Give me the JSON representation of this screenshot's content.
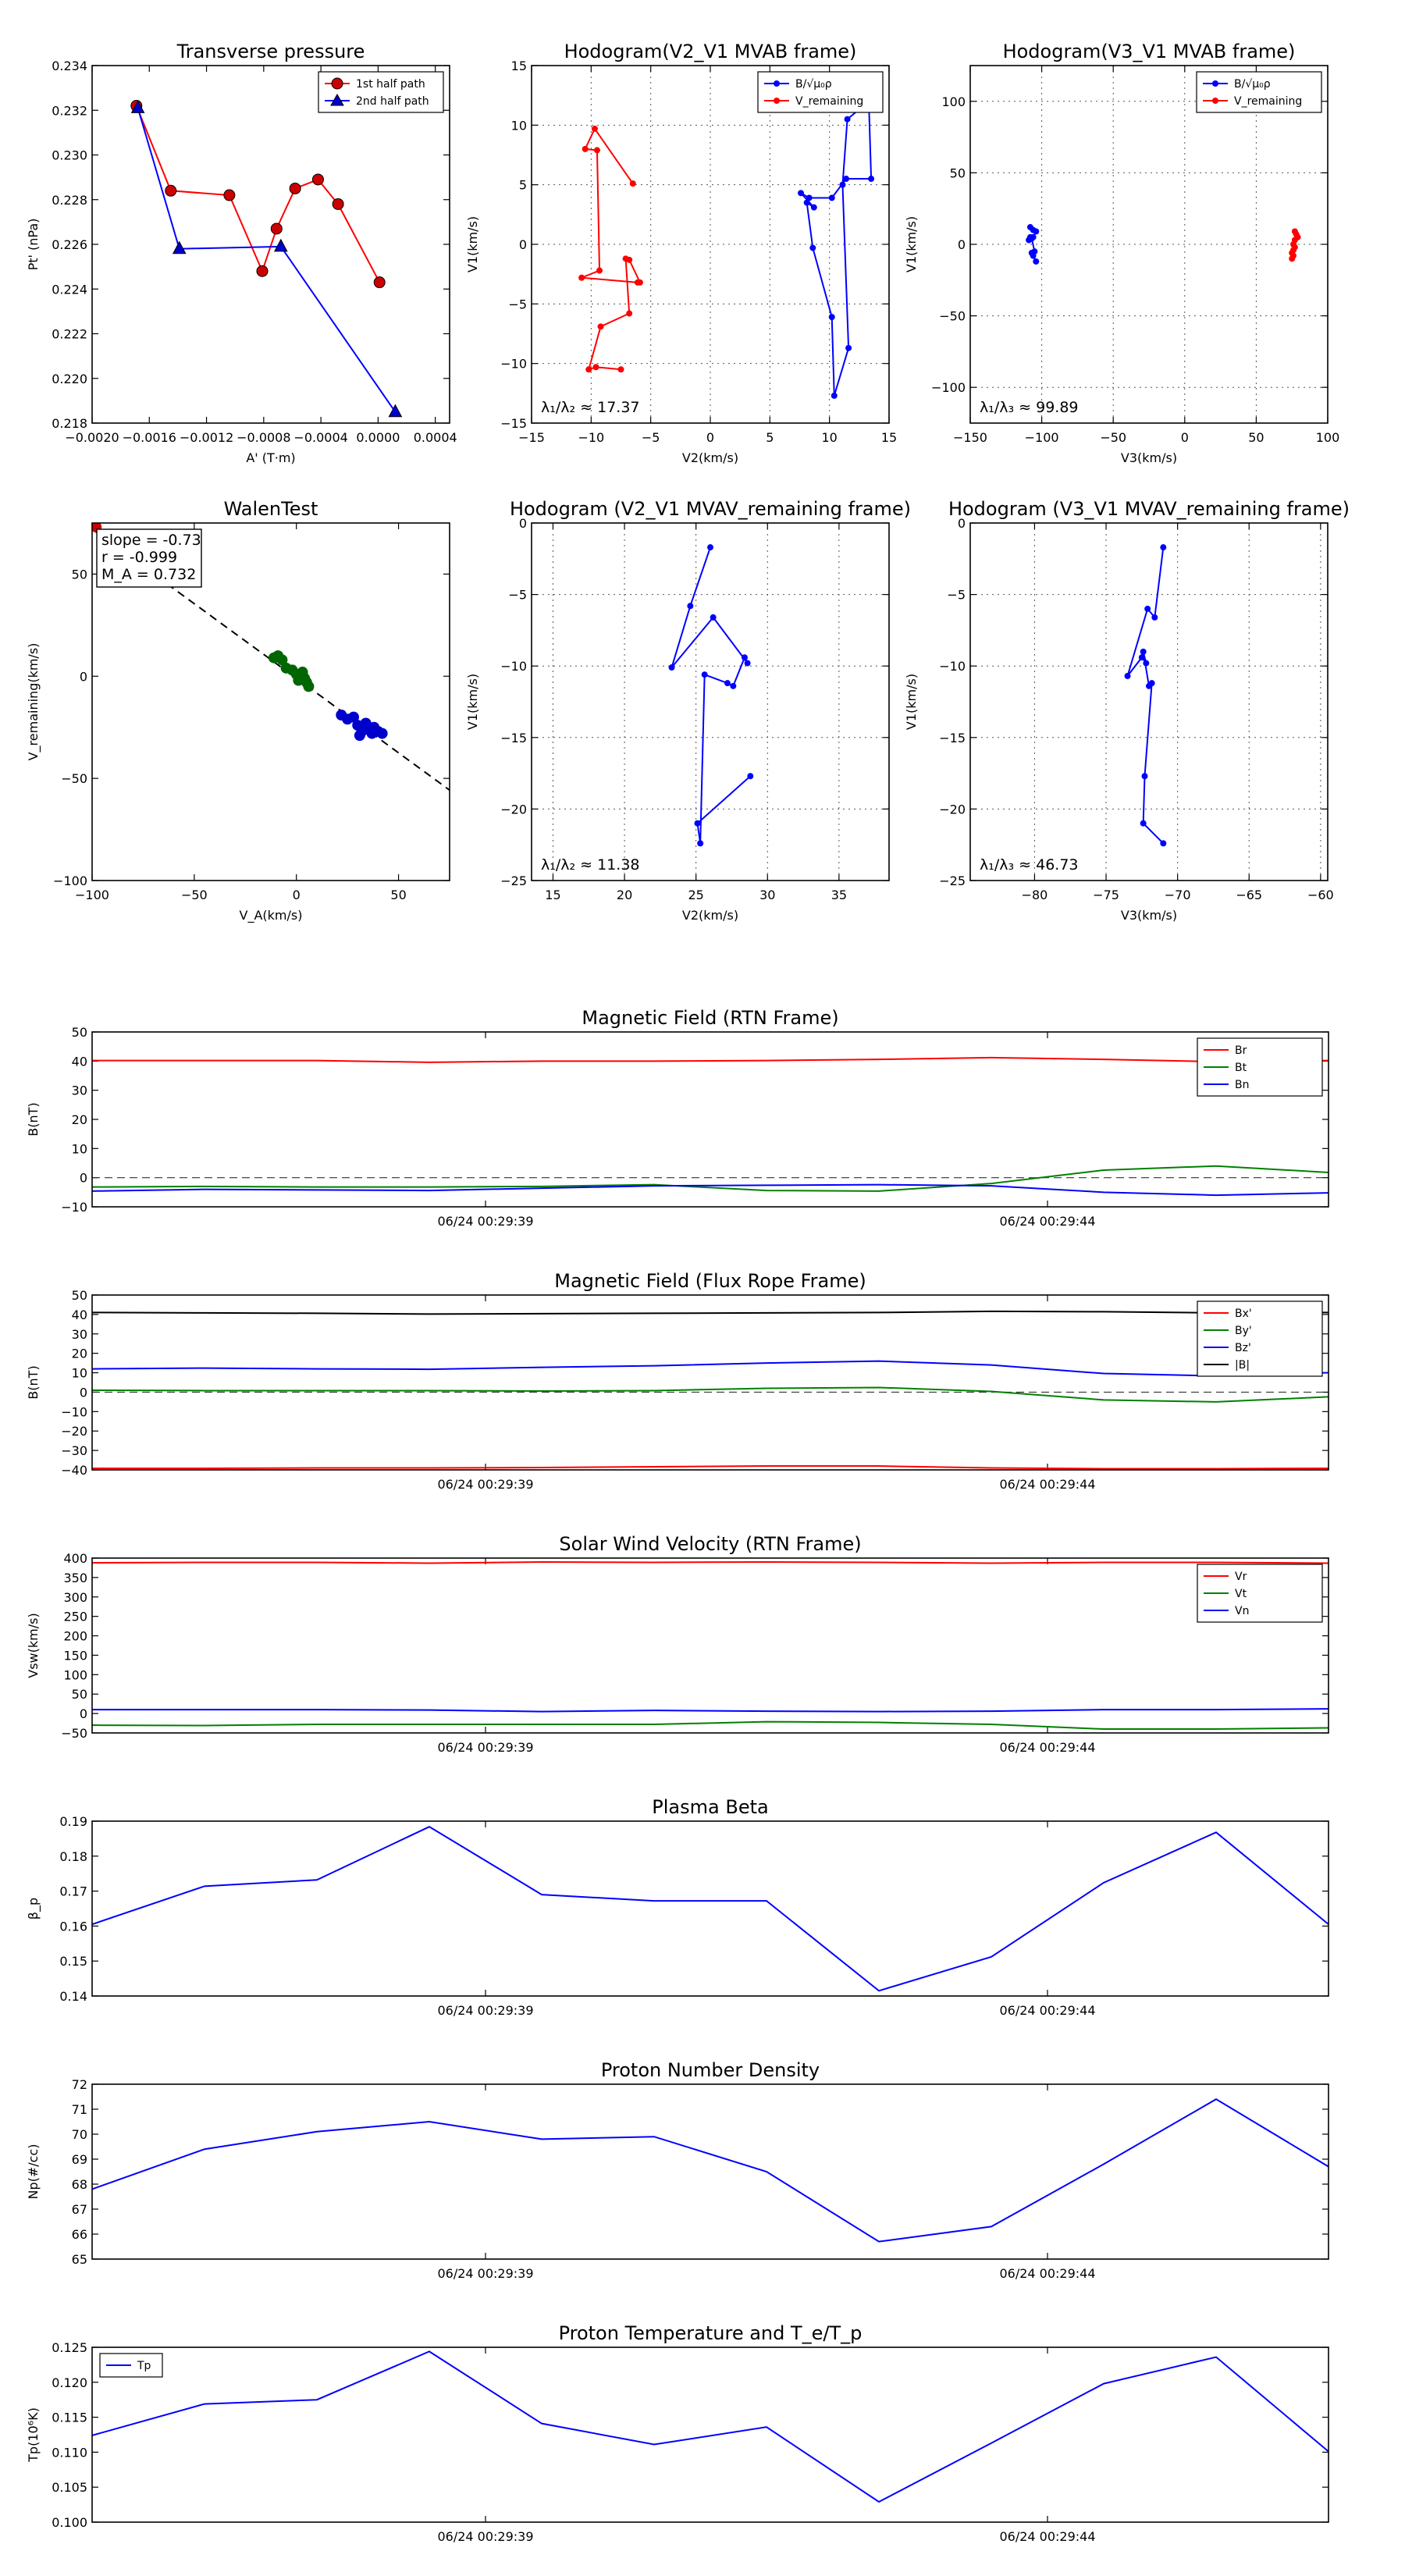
{
  "chart_data": [
    {
      "id": "transverse",
      "type": "line",
      "title": "Transverse pressure",
      "xlabel": "A' (T·m)",
      "ylabel": "Pt' (nPa)",
      "xlim": [
        -0.002,
        0.0005
      ],
      "ylim": [
        0.218,
        0.234
      ],
      "xticks": [
        -0.002,
        -0.0016,
        -0.0012,
        -0.0008,
        -0.0004,
        0.0,
        0.0004
      ],
      "xtick_labels": [
        "−0.0020",
        "−0.0016",
        "−0.0012",
        "−0.0008",
        "−0.0004",
        "0.0000",
        "0.0004"
      ],
      "yticks": [
        0.218,
        0.22,
        0.222,
        0.224,
        0.226,
        0.228,
        0.23,
        0.232,
        0.234
      ],
      "ytick_labels": [
        "0.218",
        "0.220",
        "0.222",
        "0.224",
        "0.226",
        "0.228",
        "0.230",
        "0.232",
        "0.234"
      ],
      "grid": false,
      "legend": "top-right",
      "series": [
        {
          "name": "1st half path",
          "color": "#ff0000",
          "fill": "#cc0000",
          "marker": "circle",
          "x": [
            -0.00169,
            -0.00145,
            -0.00104,
            -0.00081,
            -0.00071,
            -0.00058,
            -0.00042,
            -0.00028,
            1e-05
          ],
          "y": [
            0.2322,
            0.2284,
            0.2282,
            0.2248,
            0.2267,
            0.2285,
            0.2289,
            0.2278,
            0.2243
          ]
        },
        {
          "name": "2nd half path",
          "color": "#0000ff",
          "fill": "#0000cc",
          "marker": "triangle",
          "x": [
            -0.00168,
            -0.00139,
            -0.00068,
            0.00012
          ],
          "y": [
            0.2321,
            0.2258,
            0.2259,
            0.2185
          ]
        }
      ]
    },
    {
      "id": "hodo_v2v1_mvab",
      "type": "line",
      "title": "Hodogram(V2_V1 MVAB frame)",
      "xlabel": "V2(km/s)",
      "ylabel": "V1(km/s)",
      "xlim": [
        -15,
        15
      ],
      "ylim": [
        -15,
        15
      ],
      "xticks": [
        -15,
        -10,
        -5,
        0,
        5,
        10,
        15
      ],
      "xtick_labels": [
        "−15",
        "−10",
        "−5",
        "0",
        "5",
        "10",
        "15"
      ],
      "yticks": [
        -15,
        -10,
        -5,
        0,
        5,
        10,
        15
      ],
      "ytick_labels": [
        "−15",
        "−10",
        "−5",
        "0",
        "5",
        "10",
        "15"
      ],
      "grid": true,
      "legend": "top-right",
      "legend_labels": [
        "B/√μ₀ρ",
        "V_remaining"
      ],
      "annotation": "λ₁/λ₂ ≈ 17.37",
      "series": [
        {
          "name": "B/√μ₀ρ",
          "color": "#0000ff",
          "marker": "dot",
          "x": [
            13.3,
            11.5,
            11.1,
            11.6,
            10.4,
            10.2,
            8.6,
            8.1,
            8.7,
            7.6,
            8.3,
            10.2,
            11.4,
            13.5,
            13.3
          ],
          "y": [
            12.0,
            10.5,
            5.0,
            -8.7,
            -12.7,
            -6.1,
            -0.3,
            3.5,
            3.1,
            4.3,
            3.9,
            3.9,
            5.5,
            5.5,
            12.0
          ]
        },
        {
          "name": "V_remaining",
          "color": "#ff0000",
          "marker": "dot",
          "x": [
            -6.5,
            -9.7,
            -10.5,
            -9.5,
            -9.3,
            -10.8,
            -6.1,
            -5.9,
            -6.8,
            -7.1,
            -6.8,
            -9.2,
            -10.2,
            -9.6,
            -7.5
          ],
          "y": [
            5.1,
            9.7,
            8.0,
            7.9,
            -2.2,
            -2.8,
            -3.2,
            -3.2,
            -1.3,
            -1.2,
            -5.8,
            -6.9,
            -10.5,
            -10.3,
            -10.5
          ]
        }
      ]
    },
    {
      "id": "hodo_v3v1_mvab",
      "type": "line",
      "title": "Hodogram(V3_V1 MVAB frame)",
      "xlabel": "V3(km/s)",
      "ylabel": "V1(km/s)",
      "xlim": [
        -150,
        100
      ],
      "ylim": [
        -125,
        125
      ],
      "xticks": [
        -150,
        -100,
        -50,
        0,
        50,
        100
      ],
      "xtick_labels": [
        "−150",
        "−100",
        "−50",
        "0",
        "50",
        "100"
      ],
      "yticks": [
        -100,
        -50,
        0,
        50,
        100
      ],
      "ytick_labels": [
        "−100",
        "−50",
        "0",
        "50",
        "100"
      ],
      "grid": true,
      "legend": "top-right",
      "legend_labels": [
        "B/√μ₀ρ",
        "V_remaining"
      ],
      "annotation": "λ₁/λ₃ ≈ 99.89",
      "series": [
        {
          "name": "B/√μ₀ρ",
          "color": "#0000ff",
          "marker": "dot",
          "x": [
            -108,
            -106,
            -104,
            -106,
            -109,
            -108,
            -107,
            -105,
            -106,
            -107,
            -104
          ],
          "y": [
            12,
            10,
            9,
            5,
            3,
            5,
            4,
            -5,
            -8,
            -6,
            -12
          ]
        },
        {
          "name": "V_remaining",
          "color": "#ff0000",
          "marker": "dot",
          "x": [
            77,
            78,
            79,
            77,
            76,
            77,
            76,
            75,
            76,
            75
          ],
          "y": [
            9,
            7,
            5,
            3,
            0,
            -2,
            -4,
            -6,
            -8,
            -10
          ]
        }
      ]
    },
    {
      "id": "walen",
      "type": "scatter",
      "title": "WalenTest",
      "xlabel": "V_A(km/s)",
      "ylabel": "V_remaining(km/s)",
      "xlim": [
        -100,
        75
      ],
      "ylim": [
        -100,
        75
      ],
      "xticks": [
        -100,
        -50,
        0,
        50
      ],
      "xtick_labels": [
        "−100",
        "−50",
        "0",
        "50"
      ],
      "yticks": [
        -100,
        -50,
        0,
        50
      ],
      "ytick_labels": [
        "−100",
        "−50",
        "0",
        "50"
      ],
      "grid": false,
      "fit_slope": -0.73,
      "fit_intercept": -1.0,
      "stats_lines": [
        "slope = -0.73",
        "r = -0.999",
        "M_A = 0.732"
      ],
      "series": [
        {
          "name": "start",
          "color": "#cc0000",
          "x": [
            -100,
            -98
          ],
          "y": [
            75,
            73
          ]
        },
        {
          "name": "middle",
          "color": "#006600",
          "x": [
            -11,
            -9,
            -7,
            -5,
            -2,
            0,
            2,
            3,
            4,
            5,
            6,
            1,
            3
          ],
          "y": [
            9,
            10,
            8,
            4,
            3,
            1,
            0,
            2,
            -1,
            -3,
            -5,
            -2,
            1
          ]
        },
        {
          "name": "end",
          "color": "#0000cc",
          "x": [
            22,
            25,
            28,
            30,
            32,
            33,
            35,
            37,
            38,
            40,
            42,
            31,
            34
          ],
          "y": [
            -19,
            -21,
            -20,
            -24,
            -27,
            -25,
            -26,
            -28,
            -25,
            -27,
            -28,
            -29,
            -23
          ]
        }
      ]
    },
    {
      "id": "hodo_v2v1_mvav",
      "type": "line",
      "title": "Hodogram (V2_V1 MVAV_remaining frame)",
      "xlabel": "V2(km/s)",
      "ylabel": "V1(km/s)",
      "xlim": [
        13.5,
        38.5
      ],
      "ylim": [
        -25,
        0
      ],
      "xticks": [
        15,
        20,
        25,
        30,
        35
      ],
      "xtick_labels": [
        "15",
        "20",
        "25",
        "30",
        "35"
      ],
      "yticks": [
        -25,
        -20,
        -15,
        -10,
        -5,
        0
      ],
      "ytick_labels": [
        "−25",
        "−20",
        "−15",
        "−10",
        "−5",
        "0"
      ],
      "grid": true,
      "annotation": "λ₁/λ₂ ≈ 11.38",
      "series": [
        {
          "name": "V",
          "color": "#0000ff",
          "marker": "dot",
          "x": [
            26.0,
            24.6,
            23.3,
            26.2,
            28.6,
            28.4,
            27.6,
            27.2,
            25.6,
            25.3,
            25.1,
            28.8
          ],
          "y": [
            -1.7,
            -5.8,
            -10.1,
            -6.6,
            -9.8,
            -9.4,
            -11.4,
            -11.2,
            -10.6,
            -22.4,
            -21.0,
            -17.7
          ]
        }
      ]
    },
    {
      "id": "hodo_v3v1_mvav",
      "type": "line",
      "title": "Hodogram (V3_V1 MVAV_remaining frame)",
      "xlabel": "V3(km/s)",
      "ylabel": "V1(km/s)",
      "xlim": [
        -84.5,
        -59.5
      ],
      "ylim": [
        -25,
        0
      ],
      "xticks": [
        -80,
        -75,
        -70,
        -65,
        -60
      ],
      "xtick_labels": [
        "−80",
        "−75",
        "−70",
        "−65",
        "−60"
      ],
      "yticks": [
        -25,
        -20,
        -15,
        -10,
        -5,
        0
      ],
      "ytick_labels": [
        "−25",
        "−20",
        "−15",
        "−10",
        "−5",
        "0"
      ],
      "grid": true,
      "annotation": "λ₁/λ₃ ≈ 46.73",
      "series": [
        {
          "name": "V",
          "color": "#0000ff",
          "marker": "dot",
          "x": [
            -71.0,
            -71.6,
            -72.1,
            -73.5,
            -72.5,
            -72.2,
            -72.4,
            -72.0,
            -71.8,
            -72.3,
            -72.4,
            -71.0
          ],
          "y": [
            -1.7,
            -6.6,
            -6.0,
            -10.7,
            -9.4,
            -9.8,
            -9.0,
            -11.4,
            -11.2,
            -17.7,
            -21.0,
            -22.4
          ]
        }
      ]
    },
    {
      "id": "mag_rtn",
      "type": "line",
      "title": "Magnetic Field (RTN Frame)",
      "ylabel": "B(nT)",
      "ylim": [
        -10,
        50
      ],
      "yticks": [
        -10,
        0,
        10,
        20,
        30,
        40,
        50
      ],
      "ytick_labels": [
        "−10",
        "0",
        "10",
        "20",
        "30",
        "40",
        "50"
      ],
      "xtick_idx": [
        3.5,
        8.5
      ],
      "xtick_labels": [
        "06/24 00:29:39",
        "06/24 00:29:44"
      ],
      "zero_line": true,
      "legend": "top-right",
      "series": [
        {
          "name": "Br",
          "color": "#ff0000",
          "values": [
            40.2,
            40.2,
            40.2,
            39.6,
            40.0,
            40.0,
            40.2,
            40.6,
            41.2,
            40.6,
            39.8,
            40.2
          ]
        },
        {
          "name": "Bt",
          "color": "#008000",
          "values": [
            -3.2,
            -3.0,
            -3.2,
            -3.2,
            -3.0,
            -2.4,
            -4.4,
            -4.6,
            -2.0,
            2.6,
            4.0,
            1.8
          ]
        },
        {
          "name": "Bn",
          "color": "#0000ff",
          "values": [
            -4.6,
            -4.0,
            -4.2,
            -4.4,
            -3.6,
            -2.8,
            -2.6,
            -2.4,
            -2.8,
            -5.0,
            -6.0,
            -5.2
          ]
        }
      ]
    },
    {
      "id": "mag_fr",
      "type": "line",
      "title": "Magnetic Field (Flux Rope Frame)",
      "ylabel": "B(nT)",
      "ylim": [
        -40,
        50
      ],
      "yticks": [
        -40,
        -30,
        -20,
        -10,
        0,
        10,
        20,
        30,
        40,
        50
      ],
      "ytick_labels": [
        "−40",
        "−30",
        "−20",
        "−10",
        "0",
        "10",
        "20",
        "30",
        "40",
        "50"
      ],
      "xtick_idx": [
        3.5,
        8.5
      ],
      "xtick_labels": [
        "06/24 00:29:39",
        "06/24 00:29:44"
      ],
      "zero_line": true,
      "legend": "top-right",
      "series": [
        {
          "name": "Bx'",
          "color": "#ff0000",
          "values": [
            -39.2,
            -39.2,
            -39.0,
            -39.0,
            -38.8,
            -38.4,
            -38.0,
            -38.0,
            -39.0,
            -39.4,
            -39.4,
            -39.2
          ]
        },
        {
          "name": "By'",
          "color": "#008000",
          "values": [
            1.0,
            0.8,
            0.8,
            0.8,
            0.6,
            0.8,
            2.0,
            2.4,
            0.4,
            -4.0,
            -5.0,
            -2.4
          ]
        },
        {
          "name": "Bz'",
          "color": "#0000ff",
          "values": [
            12.0,
            12.4,
            12.0,
            11.8,
            12.8,
            13.6,
            15.0,
            16.0,
            14.0,
            9.6,
            8.4,
            10.0
          ]
        },
        {
          "name": "|B|",
          "color": "#000000",
          "values": [
            41.0,
            40.8,
            40.6,
            40.2,
            40.4,
            40.6,
            40.8,
            41.0,
            41.6,
            41.4,
            40.8,
            41.0
          ]
        }
      ]
    },
    {
      "id": "vsw",
      "type": "line",
      "title": "Solar Wind Velocity (RTN Frame)",
      "ylabel": "Vsw(km/s)",
      "ylim": [
        -50,
        400
      ],
      "yticks": [
        -50,
        0,
        50,
        100,
        150,
        200,
        250,
        300,
        350,
        400
      ],
      "ytick_labels": [
        "−50",
        "0",
        "50",
        "100",
        "150",
        "200",
        "250",
        "300",
        "350",
        "400"
      ],
      "xtick_idx": [
        3.5,
        8.5
      ],
      "xtick_labels": [
        "06/24 00:29:39",
        "06/24 00:29:44"
      ],
      "zero_line": false,
      "legend": "top-right",
      "series": [
        {
          "name": "Vr",
          "color": "#ff0000",
          "values": [
            388,
            389,
            389,
            387,
            390,
            389,
            390,
            389,
            387,
            389,
            389,
            387
          ]
        },
        {
          "name": "Vt",
          "color": "#008000",
          "values": [
            -30,
            -31,
            -28,
            -28,
            -28,
            -28,
            -21,
            -23,
            -28,
            -40,
            -40,
            -37
          ]
        },
        {
          "name": "Vn",
          "color": "#0000ff",
          "values": [
            10,
            10,
            10,
            9,
            5,
            8,
            6,
            5,
            6,
            10,
            10,
            12
          ]
        }
      ]
    },
    {
      "id": "beta",
      "type": "line",
      "title": "Plasma Beta",
      "ylabel": "β_p",
      "ylim": [
        0.14,
        0.19
      ],
      "yticks": [
        0.14,
        0.15,
        0.16,
        0.17,
        0.18,
        0.19
      ],
      "ytick_labels": [
        "0.14",
        "0.15",
        "0.16",
        "0.17",
        "0.18",
        "0.19"
      ],
      "xtick_idx": [
        3.5,
        8.5
      ],
      "xtick_labels": [
        "06/24 00:29:39",
        "06/24 00:29:44"
      ],
      "series": [
        {
          "name": "beta",
          "color": "#0000ff",
          "values": [
            0.1605,
            0.1714,
            0.1732,
            0.1884,
            0.169,
            0.1672,
            0.1672,
            0.1415,
            0.1512,
            0.1724,
            0.1868,
            0.1605
          ]
        }
      ]
    },
    {
      "id": "np",
      "type": "line",
      "title": "Proton Number Density",
      "ylabel": "Np(#/cc)",
      "ylim": [
        65,
        72
      ],
      "yticks": [
        65,
        66,
        67,
        68,
        69,
        70,
        71,
        72
      ],
      "ytick_labels": [
        "65",
        "66",
        "67",
        "68",
        "69",
        "70",
        "71",
        "72"
      ],
      "xtick_idx": [
        3.5,
        8.5
      ],
      "xtick_labels": [
        "06/24 00:29:39",
        "06/24 00:29:44"
      ],
      "series": [
        {
          "name": "Np",
          "color": "#0000ff",
          "values": [
            67.8,
            69.4,
            70.1,
            70.5,
            69.8,
            69.9,
            68.5,
            65.7,
            66.3,
            68.8,
            71.4,
            68.7
          ]
        }
      ]
    },
    {
      "id": "tp",
      "type": "line",
      "title": "Proton Temperature and T_e/T_p",
      "ylabel": "Tp(10⁶K)",
      "ylim": [
        0.1,
        0.125
      ],
      "yticks": [
        0.1,
        0.105,
        0.11,
        0.115,
        0.12,
        0.125
      ],
      "ytick_labels": [
        "0.100",
        "0.105",
        "0.110",
        "0.115",
        "0.120",
        "0.125"
      ],
      "xtick_idx": [
        3.5,
        8.5
      ],
      "xtick_labels": [
        "06/24 00:29:39",
        "06/24 00:29:44"
      ],
      "legend": "top-left",
      "series": [
        {
          "name": "Tp",
          "color": "#0000ff",
          "values": [
            0.1124,
            0.1169,
            0.1175,
            0.1244,
            0.1141,
            0.1111,
            0.1136,
            0.1029,
            0.1113,
            0.1198,
            0.1236,
            0.1101
          ]
        }
      ]
    }
  ]
}
